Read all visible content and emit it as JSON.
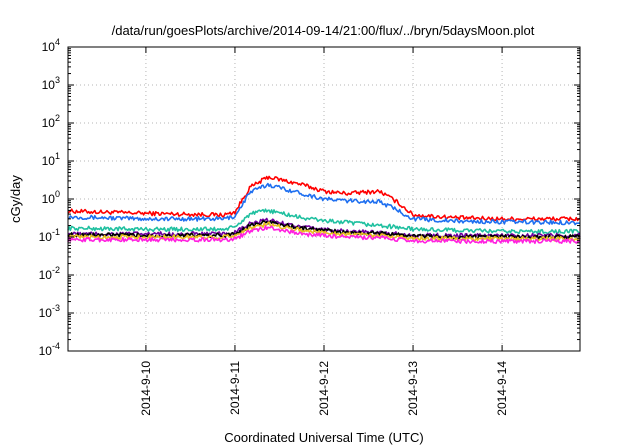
{
  "chart_data": {
    "type": "line",
    "title": "/data/run/goesPlots/archive/2014-09-14/21:00/flux/../bryn/5daysMoon.plot",
    "xlabel": "Coordinated Universal Time (UTC)",
    "ylabel": "cGy/day",
    "yscale": "log",
    "ylim": [
      0.0001,
      10000
    ],
    "xlim": [
      "2014-09-09 03:00",
      "2014-09-14 21:00"
    ],
    "grid": true,
    "x_ticks": [
      "2014-9-10",
      "2014-9-11",
      "2014-9-12",
      "2014-9-13",
      "2014-9-14"
    ],
    "y_ticks": [
      {
        "base": "10",
        "exp": "4"
      },
      {
        "base": "10",
        "exp": "3"
      },
      {
        "base": "10",
        "exp": "2"
      },
      {
        "base": "10",
        "exp": "1"
      },
      {
        "base": "10",
        "exp": "0"
      },
      {
        "base": "10",
        "exp": "-1"
      },
      {
        "base": "10",
        "exp": "-2"
      },
      {
        "base": "10",
        "exp": "-3"
      },
      {
        "base": "10",
        "exp": "-4"
      }
    ],
    "x": [
      "2014-09-09 03:00",
      "2014-09-10 00:00",
      "2014-09-10 21:00",
      "2014-09-11 00:00",
      "2014-09-11 04:00",
      "2014-09-11 09:00",
      "2014-09-11 18:00",
      "2014-09-12 00:00",
      "2014-09-12 06:00",
      "2014-09-12 15:00",
      "2014-09-12 20:00",
      "2014-09-13 00:00",
      "2014-09-13 12:00",
      "2014-09-14 00:00",
      "2014-09-14 21:00"
    ],
    "series": [
      {
        "color": "#ff0000",
        "values": [
          0.48,
          0.42,
          0.38,
          0.45,
          2.0,
          3.8,
          2.4,
          1.6,
          1.4,
          1.6,
          0.8,
          0.38,
          0.32,
          0.3,
          0.3
        ]
      },
      {
        "color": "#1e6ff0",
        "values": [
          0.34,
          0.3,
          0.3,
          0.35,
          1.5,
          2.4,
          1.4,
          1.0,
          0.9,
          0.85,
          0.5,
          0.3,
          0.26,
          0.25,
          0.24
        ]
      },
      {
        "color": "#20c0a0",
        "values": [
          0.17,
          0.16,
          0.16,
          0.18,
          0.4,
          0.5,
          0.32,
          0.27,
          0.24,
          0.2,
          0.18,
          0.16,
          0.15,
          0.14,
          0.14
        ]
      },
      {
        "color": "#7000a0",
        "values": [
          0.12,
          0.12,
          0.12,
          0.13,
          0.22,
          0.28,
          0.18,
          0.16,
          0.14,
          0.13,
          0.12,
          0.11,
          0.11,
          0.11,
          0.11
        ]
      },
      {
        "color": "#000000",
        "values": [
          0.115,
          0.11,
          0.11,
          0.12,
          0.2,
          0.25,
          0.17,
          0.15,
          0.13,
          0.125,
          0.115,
          0.105,
          0.1,
          0.1,
          0.1
        ]
      },
      {
        "color": "#e8c020",
        "values": [
          0.1,
          0.1,
          0.1,
          0.11,
          0.17,
          0.22,
          0.15,
          0.13,
          0.12,
          0.11,
          0.1,
          0.095,
          0.09,
          0.09,
          0.09
        ]
      },
      {
        "color": "#ff20e0",
        "values": [
          0.085,
          0.085,
          0.085,
          0.09,
          0.14,
          0.18,
          0.12,
          0.11,
          0.1,
          0.095,
          0.085,
          0.08,
          0.078,
          0.077,
          0.078
        ]
      }
    ]
  }
}
